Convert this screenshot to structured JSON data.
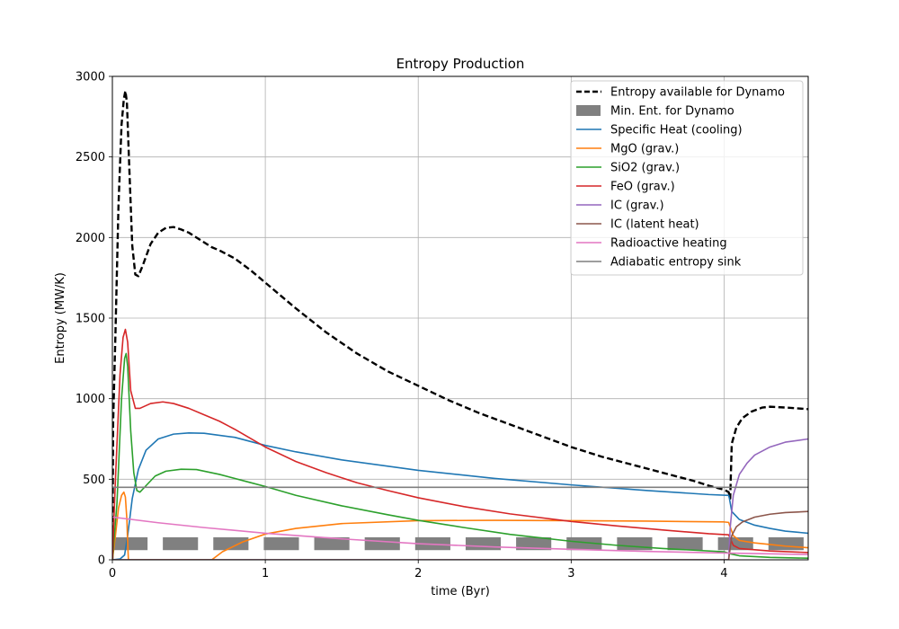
{
  "chart_data": {
    "type": "line",
    "title": "Entropy Production",
    "xlabel": "time (Byr)",
    "ylabel": "Entropy (MW/K)",
    "xlim": [
      0,
      4.55
    ],
    "ylim": [
      0,
      3000
    ],
    "xticks": [
      0,
      1,
      2,
      3,
      4
    ],
    "xtick_labels": [
      "0",
      "1",
      "2",
      "3",
      "4"
    ],
    "yticks": [
      0,
      500,
      1000,
      1500,
      2000,
      2500,
      3000
    ],
    "ytick_labels": [
      "0",
      "500",
      "1000",
      "1500",
      "2000",
      "2500",
      "3000"
    ],
    "grid": true,
    "legend_position": "upper right",
    "min_entropy_band": {
      "name": "Min. Ent. for Dynamo",
      "color": "#808080",
      "y_range": [
        60,
        140
      ],
      "dash_starts": [
        0.0,
        0.33,
        0.66,
        0.99,
        1.32,
        1.65,
        1.98,
        2.31,
        2.64,
        2.97,
        3.3,
        3.63,
        3.96,
        4.29
      ],
      "dash_length": 0.23
    },
    "series": [
      {
        "name": "Entropy available for Dynamo",
        "color": "#000000",
        "style": "dashed",
        "points": [
          [
            0,
            0
          ],
          [
            0.005,
            850
          ],
          [
            0.02,
            1400
          ],
          [
            0.04,
            2200
          ],
          [
            0.06,
            2700
          ],
          [
            0.075,
            2860
          ],
          [
            0.085,
            2910
          ],
          [
            0.095,
            2840
          ],
          [
            0.11,
            2450
          ],
          [
            0.13,
            1950
          ],
          [
            0.15,
            1770
          ],
          [
            0.17,
            1760
          ],
          [
            0.2,
            1830
          ],
          [
            0.25,
            1960
          ],
          [
            0.3,
            2030
          ],
          [
            0.35,
            2060
          ],
          [
            0.4,
            2065
          ],
          [
            0.45,
            2050
          ],
          [
            0.5,
            2030
          ],
          [
            0.55,
            2000
          ],
          [
            0.6,
            1970
          ],
          [
            0.65,
            1940
          ],
          [
            0.7,
            1920
          ],
          [
            0.8,
            1870
          ],
          [
            0.9,
            1800
          ],
          [
            1.0,
            1720
          ],
          [
            1.2,
            1560
          ],
          [
            1.4,
            1410
          ],
          [
            1.6,
            1280
          ],
          [
            1.8,
            1170
          ],
          [
            2.0,
            1080
          ],
          [
            2.2,
            990
          ],
          [
            2.4,
            910
          ],
          [
            2.6,
            840
          ],
          [
            2.8,
            770
          ],
          [
            3.0,
            700
          ],
          [
            3.2,
            640
          ],
          [
            3.4,
            590
          ],
          [
            3.6,
            540
          ],
          [
            3.8,
            490
          ],
          [
            3.9,
            460
          ],
          [
            4.0,
            435
          ],
          [
            4.03,
            420
          ],
          [
            4.04,
            380
          ],
          [
            4.05,
            720
          ],
          [
            4.08,
            820
          ],
          [
            4.12,
            880
          ],
          [
            4.18,
            920
          ],
          [
            4.25,
            945
          ],
          [
            4.3,
            950
          ],
          [
            4.4,
            945
          ],
          [
            4.55,
            935
          ]
        ]
      },
      {
        "name": "Specific Heat (cooling)",
        "color": "#1f77b4",
        "style": "solid",
        "points": [
          [
            0,
            0
          ],
          [
            0.05,
            5
          ],
          [
            0.08,
            30
          ],
          [
            0.1,
            150
          ],
          [
            0.13,
            380
          ],
          [
            0.17,
            560
          ],
          [
            0.22,
            680
          ],
          [
            0.3,
            750
          ],
          [
            0.4,
            780
          ],
          [
            0.5,
            787
          ],
          [
            0.6,
            785
          ],
          [
            0.8,
            760
          ],
          [
            1.0,
            710
          ],
          [
            1.2,
            670
          ],
          [
            1.5,
            620
          ],
          [
            2.0,
            555
          ],
          [
            2.5,
            505
          ],
          [
            3.0,
            465
          ],
          [
            3.5,
            430
          ],
          [
            3.9,
            405
          ],
          [
            4.03,
            400
          ],
          [
            4.035,
            380
          ],
          [
            4.05,
            300
          ],
          [
            4.1,
            250
          ],
          [
            4.2,
            215
          ],
          [
            4.3,
            195
          ],
          [
            4.4,
            178
          ],
          [
            4.55,
            165
          ]
        ]
      },
      {
        "name": "MgO (grav.)",
        "color": "#ff7f0e",
        "style": "solid",
        "points": [
          [
            0,
            0
          ],
          [
            0.02,
            150
          ],
          [
            0.04,
            320
          ],
          [
            0.06,
            400
          ],
          [
            0.075,
            420
          ],
          [
            0.085,
            390
          ],
          [
            0.095,
            250
          ],
          [
            0.1,
            100
          ],
          [
            0.105,
            0
          ],
          [
            0.65,
            0
          ],
          [
            0.72,
            50
          ],
          [
            0.85,
            110
          ],
          [
            1.0,
            160
          ],
          [
            1.2,
            195
          ],
          [
            1.5,
            225
          ],
          [
            2.0,
            243
          ],
          [
            2.5,
            245
          ],
          [
            3.0,
            243
          ],
          [
            3.5,
            240
          ],
          [
            4.0,
            235
          ],
          [
            4.03,
            232
          ],
          [
            4.06,
            150
          ],
          [
            4.1,
            120
          ],
          [
            4.2,
            105
          ],
          [
            4.3,
            95
          ],
          [
            4.4,
            85
          ],
          [
            4.55,
            75
          ]
        ]
      },
      {
        "name": "SiO2 (grav.)",
        "color": "#2ca02c",
        "style": "solid",
        "points": [
          [
            0,
            0
          ],
          [
            0.03,
            350
          ],
          [
            0.06,
            1000
          ],
          [
            0.08,
            1250
          ],
          [
            0.09,
            1280
          ],
          [
            0.1,
            1200
          ],
          [
            0.12,
            800
          ],
          [
            0.14,
            540
          ],
          [
            0.16,
            430
          ],
          [
            0.18,
            420
          ],
          [
            0.22,
            460
          ],
          [
            0.28,
            520
          ],
          [
            0.35,
            550
          ],
          [
            0.45,
            562
          ],
          [
            0.55,
            560
          ],
          [
            0.7,
            530
          ],
          [
            0.9,
            480
          ],
          [
            1.0,
            455
          ],
          [
            1.2,
            400
          ],
          [
            1.5,
            335
          ],
          [
            1.8,
            280
          ],
          [
            2.0,
            245
          ],
          [
            2.3,
            200
          ],
          [
            2.6,
            158
          ],
          [
            3.0,
            115
          ],
          [
            3.3,
            90
          ],
          [
            3.6,
            70
          ],
          [
            4.0,
            50
          ],
          [
            4.05,
            35
          ],
          [
            4.1,
            25
          ],
          [
            4.3,
            15
          ],
          [
            4.55,
            10
          ]
        ]
      },
      {
        "name": "FeO (grav.)",
        "color": "#d62728",
        "style": "solid",
        "points": [
          [
            0,
            0
          ],
          [
            0.02,
            500
          ],
          [
            0.05,
            1150
          ],
          [
            0.07,
            1380
          ],
          [
            0.085,
            1430
          ],
          [
            0.1,
            1350
          ],
          [
            0.12,
            1050
          ],
          [
            0.15,
            940
          ],
          [
            0.18,
            940
          ],
          [
            0.25,
            970
          ],
          [
            0.33,
            980
          ],
          [
            0.4,
            970
          ],
          [
            0.5,
            940
          ],
          [
            0.6,
            900
          ],
          [
            0.7,
            860
          ],
          [
            0.8,
            810
          ],
          [
            1.0,
            700
          ],
          [
            1.2,
            610
          ],
          [
            1.4,
            540
          ],
          [
            1.6,
            478
          ],
          [
            1.8,
            430
          ],
          [
            2.0,
            385
          ],
          [
            2.3,
            330
          ],
          [
            2.6,
            285
          ],
          [
            3.0,
            238
          ],
          [
            3.3,
            210
          ],
          [
            3.6,
            185
          ],
          [
            3.9,
            162
          ],
          [
            4.03,
            155
          ],
          [
            4.06,
            90
          ],
          [
            4.1,
            70
          ],
          [
            4.3,
            55
          ],
          [
            4.55,
            45
          ]
        ]
      },
      {
        "name": "IC (grav.)",
        "color": "#9467bd",
        "style": "solid",
        "points": [
          [
            0,
            0
          ],
          [
            4.03,
            0
          ],
          [
            4.04,
            200
          ],
          [
            4.06,
            400
          ],
          [
            4.1,
            530
          ],
          [
            4.15,
            600
          ],
          [
            4.2,
            650
          ],
          [
            4.3,
            700
          ],
          [
            4.4,
            730
          ],
          [
            4.55,
            750
          ]
        ]
      },
      {
        "name": "IC (latent heat)",
        "color": "#8c564b",
        "style": "solid",
        "points": [
          [
            0,
            0
          ],
          [
            4.03,
            0
          ],
          [
            4.05,
            150
          ],
          [
            4.08,
            205
          ],
          [
            4.12,
            235
          ],
          [
            4.2,
            265
          ],
          [
            4.3,
            283
          ],
          [
            4.4,
            293
          ],
          [
            4.55,
            300
          ]
        ]
      },
      {
        "name": "Radioactive heating",
        "color": "#e377c2",
        "style": "solid",
        "points": [
          [
            0,
            265
          ],
          [
            0.3,
            230
          ],
          [
            0.6,
            200
          ],
          [
            1.0,
            165
          ],
          [
            1.5,
            130
          ],
          [
            2.0,
            100
          ],
          [
            2.5,
            80
          ],
          [
            3.0,
            65
          ],
          [
            3.5,
            52
          ],
          [
            4.0,
            42
          ],
          [
            4.55,
            33
          ]
        ]
      },
      {
        "name": "Adiabatic entropy sink",
        "color": "#7f7f7f",
        "style": "solid",
        "points": [
          [
            0,
            450
          ],
          [
            4.55,
            450
          ]
        ]
      }
    ]
  }
}
